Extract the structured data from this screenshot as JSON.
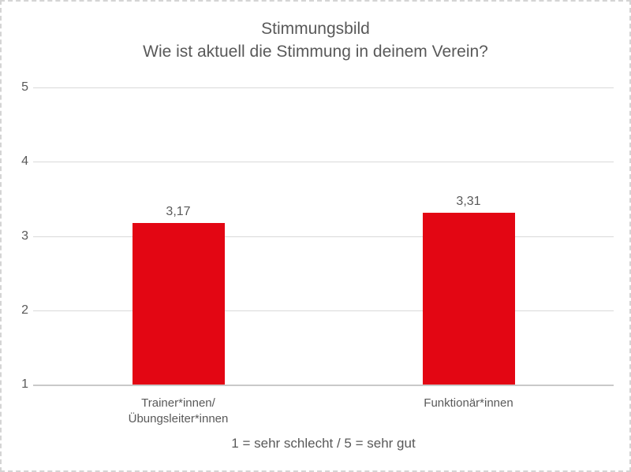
{
  "figure": {
    "title": "Stimmungsbild",
    "subtitle": "Wie ist aktuell die Stimmung in deinem Verein?",
    "axis_note": "1 = sehr schlecht / 5 = sehr gut"
  },
  "colors": {
    "bar": "#e30613",
    "gridline": "#d9d9d9",
    "axis_line": "#c9c9c9",
    "text": "#595959",
    "border": "#d4d4d4",
    "background": "#ffffff"
  },
  "chart_data": {
    "type": "bar",
    "title": "Stimmungsbild",
    "subtitle": "Wie ist aktuell die Stimmung in deinem Verein?",
    "categories": [
      "Trainer*innen/\nÜbungsleiter*innen",
      "Funktionär*innen"
    ],
    "values": [
      3.17,
      3.31
    ],
    "value_labels": [
      "3,17",
      "3,31"
    ],
    "xlabel": "1 = sehr schlecht / 5 = sehr gut",
    "ylabel": "",
    "ylim": [
      1,
      5
    ],
    "yticks": [
      5,
      4,
      3,
      2,
      1
    ],
    "grid": true,
    "legend": false,
    "bar_color": "#e30613"
  }
}
